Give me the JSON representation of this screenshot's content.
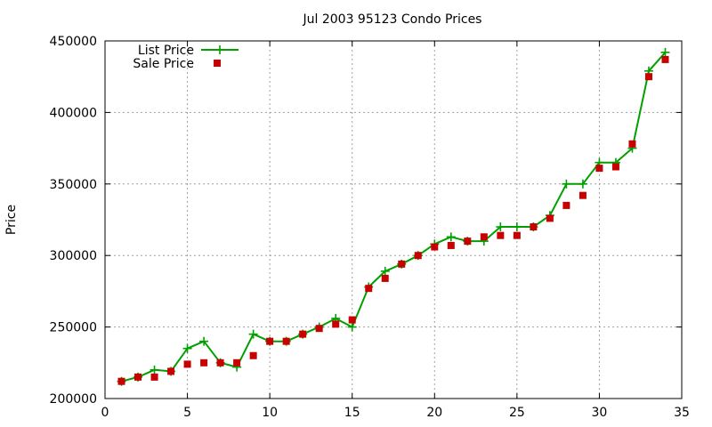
{
  "chart_data": {
    "type": "line",
    "title": "Jul 2003 95123 Condo Prices",
    "xlabel": "",
    "ylabel": "Price",
    "xlim": [
      0,
      35
    ],
    "ylim": [
      200000,
      450000
    ],
    "xticks": [
      "0",
      "5",
      "10",
      "15",
      "20",
      "25",
      "30",
      "35"
    ],
    "yticks": [
      "200000",
      "250000",
      "300000",
      "350000",
      "400000",
      "450000"
    ],
    "grid": true,
    "legend_position": "top-left",
    "x": [
      1,
      2,
      3,
      4,
      5,
      6,
      7,
      8,
      9,
      10,
      11,
      12,
      13,
      14,
      15,
      16,
      17,
      18,
      19,
      20,
      21,
      22,
      23,
      24,
      25,
      26,
      27,
      28,
      29,
      30,
      31,
      32,
      33,
      34
    ],
    "series": [
      {
        "name": "List Price",
        "style": "line-points",
        "marker": "plus",
        "color": "#00a000",
        "values": [
          212000,
          215000,
          220000,
          219000,
          235000,
          240000,
          225000,
          222000,
          245000,
          240000,
          240000,
          245000,
          250000,
          256000,
          250000,
          278000,
          289000,
          294000,
          300000,
          308000,
          313000,
          310000,
          310000,
          320000,
          320000,
          320000,
          328000,
          350000,
          350000,
          365000,
          365000,
          375000,
          429000,
          442000
        ]
      },
      {
        "name": "Sale Price",
        "style": "points",
        "marker": "square",
        "color": "#c80000",
        "values": [
          212000,
          215000,
          215000,
          219000,
          224000,
          225000,
          225000,
          225000,
          230000,
          240000,
          240000,
          245000,
          249000,
          252000,
          255000,
          277000,
          284000,
          294000,
          300000,
          306000,
          307000,
          310000,
          313000,
          314000,
          314000,
          320000,
          326000,
          335000,
          342000,
          361000,
          362000,
          378000,
          425000,
          437000
        ]
      }
    ]
  }
}
